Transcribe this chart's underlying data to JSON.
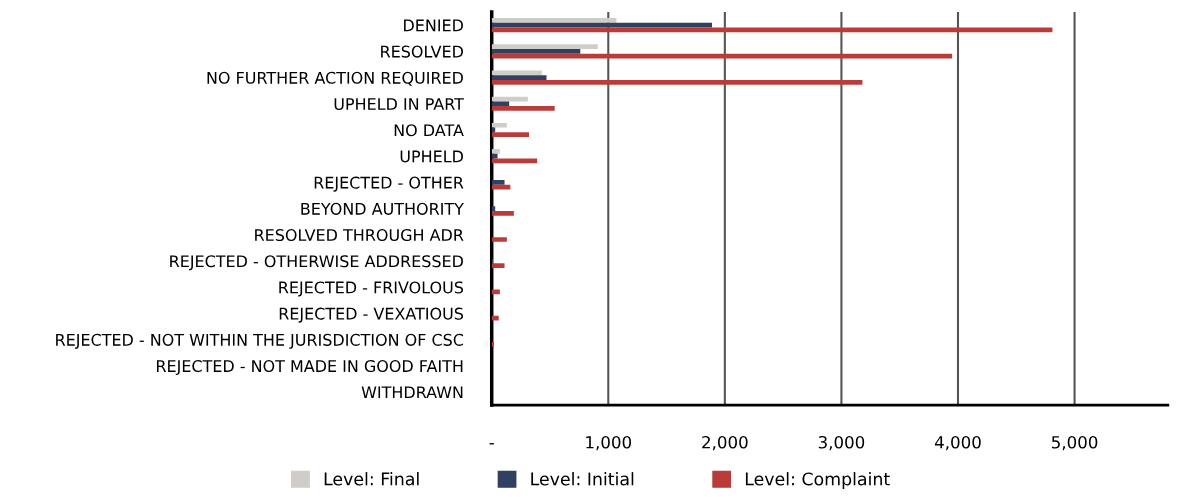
{
  "chart_data": {
    "type": "bar",
    "orientation": "horizontal",
    "categories": [
      "DENIED",
      "RESOLVED",
      "NO FURTHER ACTION REQUIRED",
      "UPHELD IN PART",
      "NO DATA",
      "UPHELD",
      "REJECTED - OTHER",
      "BEYOND AUTHORITY",
      "RESOLVED THROUGH ADR",
      "REJECTED - OTHERWISE ADDRESSED",
      "REJECTED - FRIVOLOUS",
      "REJECTED - VEXATIOUS",
      "REJECTED - NOT WITHIN THE JURISDICTION OF CSC",
      "REJECTED - NOT MADE IN GOOD FAITH",
      "WITHDRAWN"
    ],
    "series": [
      {
        "name": "Level: Final",
        "color": "#d0ccc8",
        "values": [
          1070,
          910,
          430,
          310,
          130,
          70,
          0,
          0,
          0,
          0,
          0,
          0,
          0,
          0,
          0
        ]
      },
      {
        "name": "Level: Initial",
        "color": "#313f60",
        "values": [
          1890,
          760,
          470,
          150,
          30,
          50,
          110,
          30,
          0,
          10,
          0,
          0,
          0,
          0,
          0
        ]
      },
      {
        "name": "Level: Complaint",
        "color": "#b93c3b",
        "values": [
          4810,
          3950,
          3180,
          540,
          320,
          390,
          160,
          190,
          130,
          110,
          70,
          60,
          20,
          0,
          0
        ]
      }
    ],
    "xlim": [
      0,
      5800
    ],
    "xticks": [
      {
        "value": 0,
        "label": "-"
      },
      {
        "value": 1000,
        "label": "1,000"
      },
      {
        "value": 2000,
        "label": "2,000"
      },
      {
        "value": 3000,
        "label": "3,000"
      },
      {
        "value": 4000,
        "label": "4,000"
      },
      {
        "value": 5000,
        "label": "5,000"
      }
    ],
    "grid": "x",
    "legend": "bottom"
  }
}
